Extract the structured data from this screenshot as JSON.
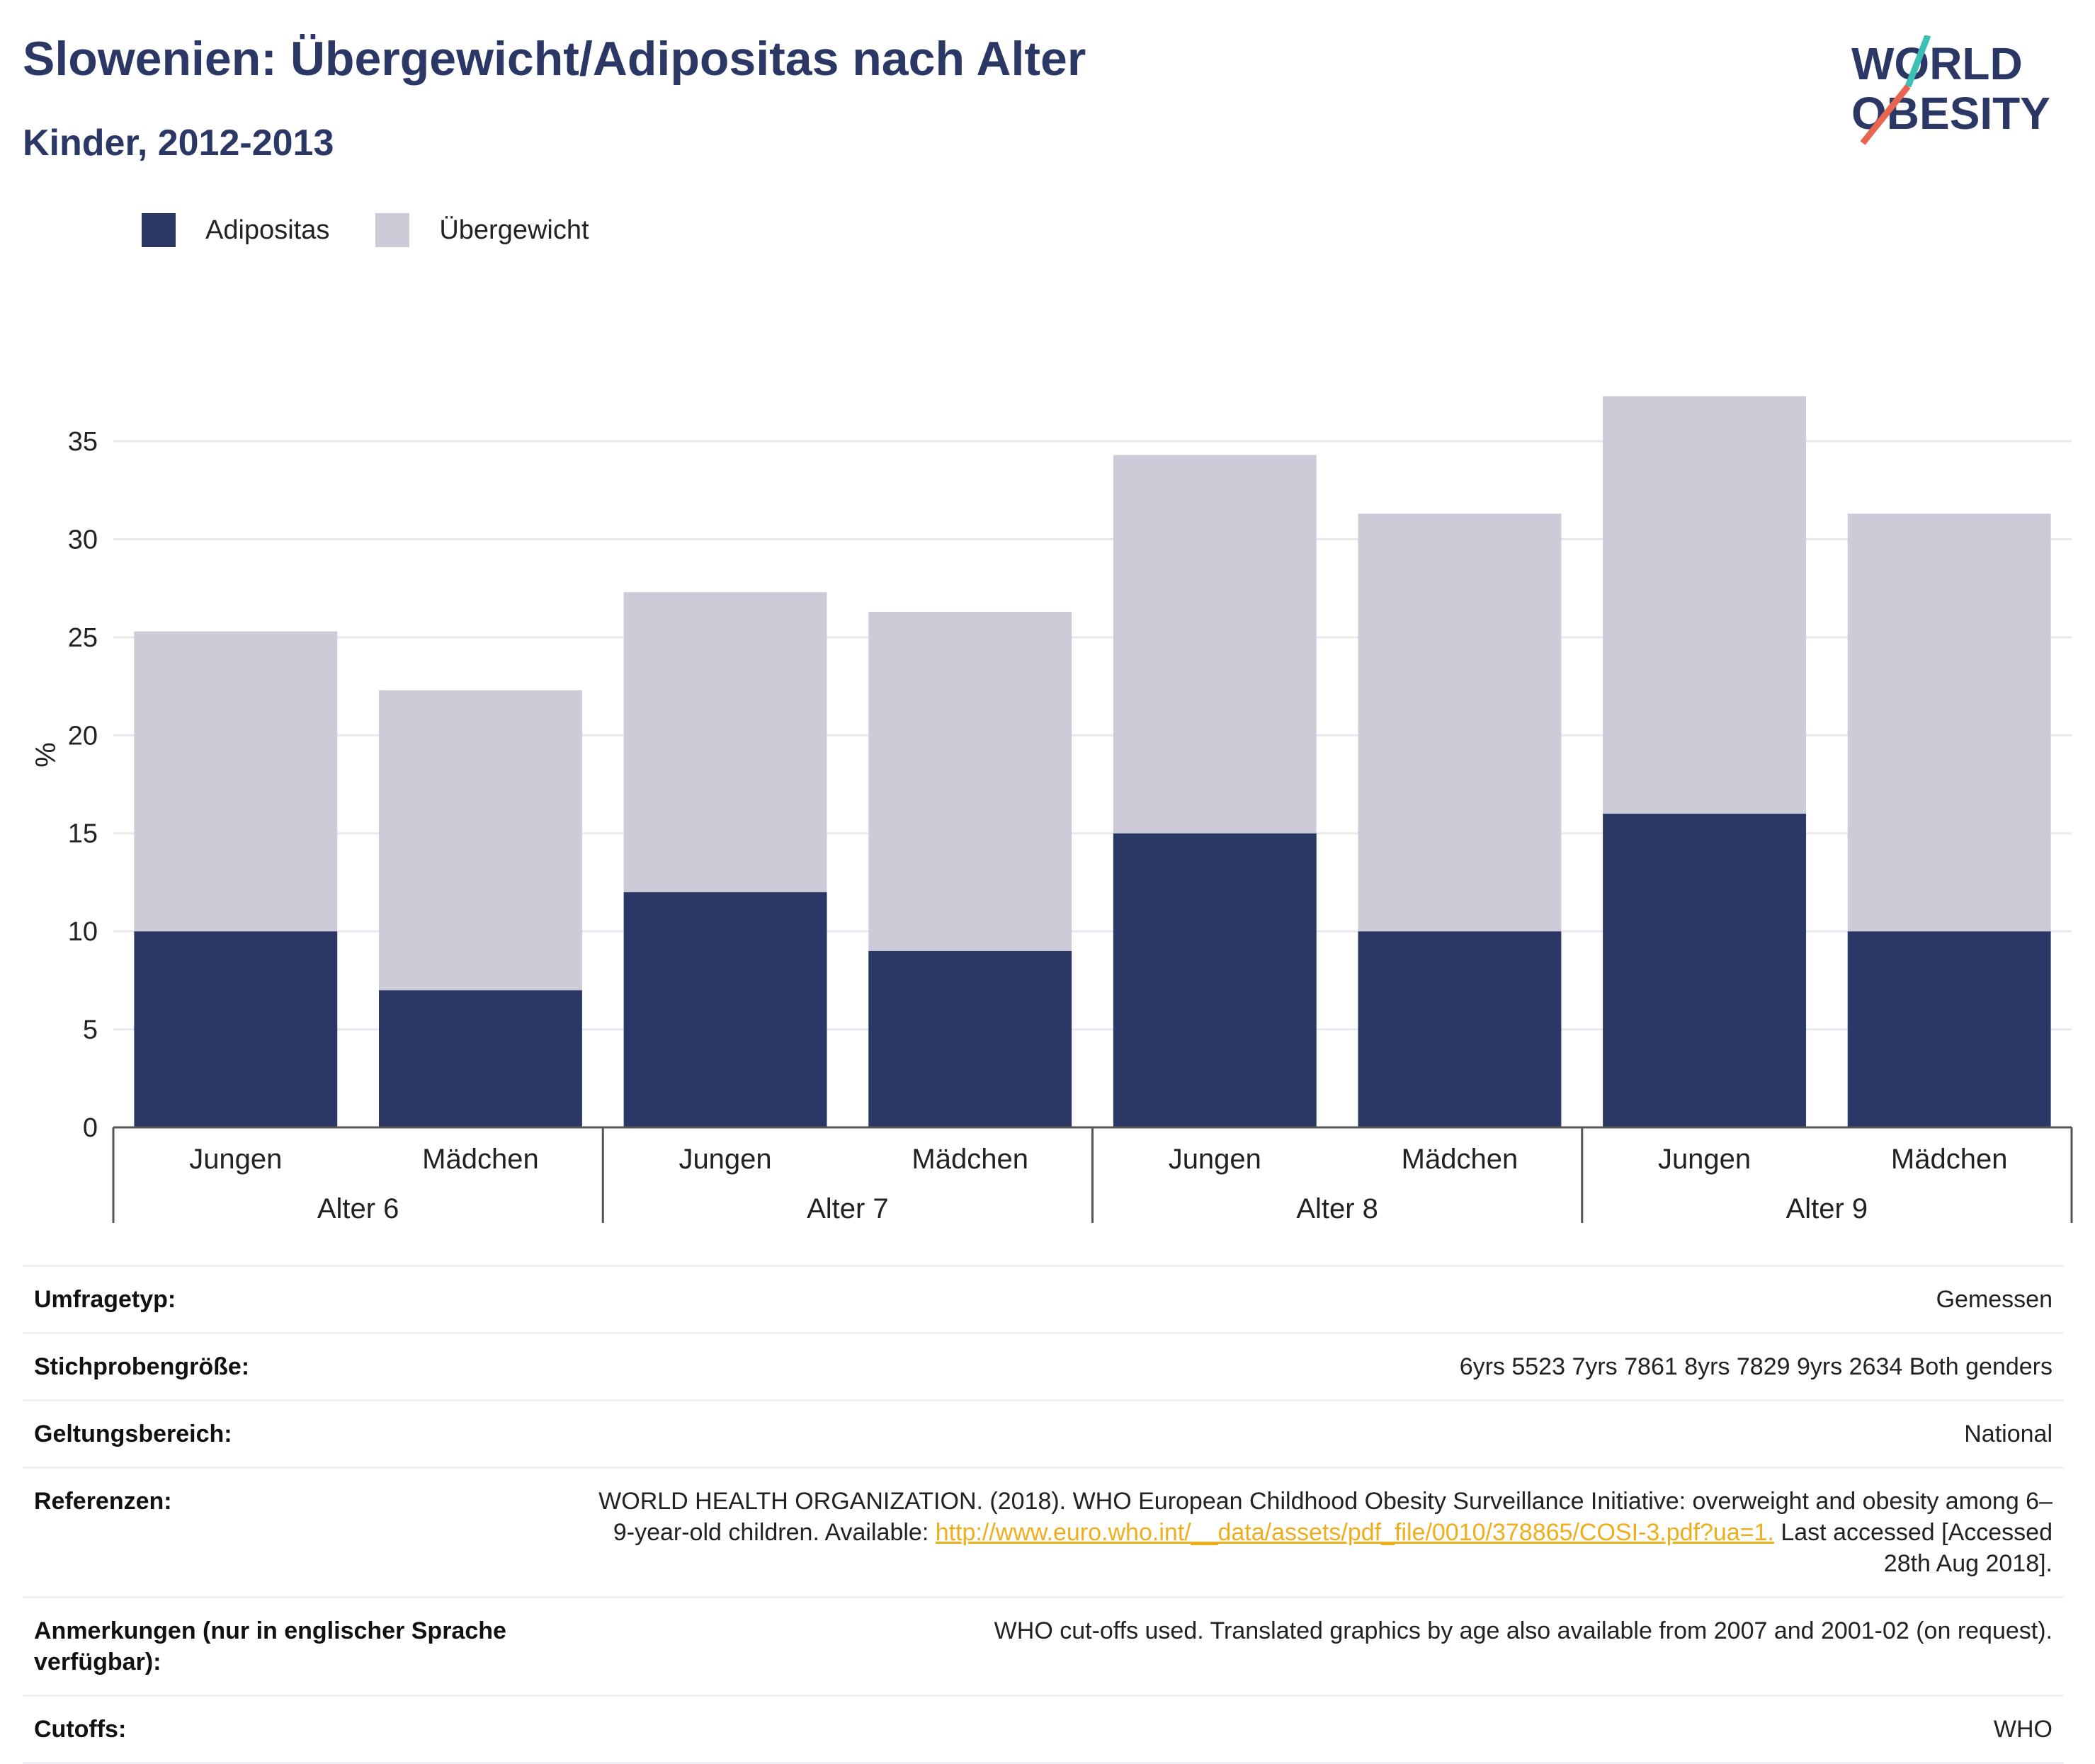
{
  "header": {
    "title": "Slowenien: Übergewicht/Adipositas nach Alter",
    "subtitle": "Kinder, 2012-2013"
  },
  "logo": {
    "line1": "WORLD",
    "line2": "OBESITY"
  },
  "colors": {
    "adipositas": "#2b3765",
    "uebergewicht": "#cbccd8",
    "title": "#2b3765",
    "link": "#f0ae1d"
  },
  "chart_data": {
    "type": "bar",
    "stacked": true,
    "ylabel": "%",
    "ylim": [
      0,
      38
    ],
    "yticks": [
      0,
      5,
      10,
      15,
      20,
      25,
      30,
      35
    ],
    "grid": true,
    "legend_position": "top-left",
    "groups": [
      "Alter 6",
      "Alter 7",
      "Alter 8",
      "Alter 9"
    ],
    "categories": [
      "Jungen",
      "Mädchen",
      "Jungen",
      "Mädchen",
      "Jungen",
      "Mädchen",
      "Jungen",
      "Mädchen"
    ],
    "series": [
      {
        "name": "Adipositas",
        "values": [
          10,
          7,
          12,
          9,
          15,
          10,
          16,
          10
        ]
      },
      {
        "name": "Übergewicht",
        "values": [
          15.3,
          15.3,
          15.3,
          17.3,
          19.3,
          21.3,
          21.3,
          21.3
        ]
      }
    ]
  },
  "info": {
    "survey_type": {
      "label": "Umfragetyp:",
      "value": "Gemessen"
    },
    "sample_size": {
      "label": "Stichprobengröße:",
      "value": "6yrs 5523 7yrs 7861 8yrs 7829 9yrs 2634 Both genders"
    },
    "scope": {
      "label": "Geltungsbereich:",
      "value": "National"
    },
    "references": {
      "label": "Referenzen:",
      "text1": "WORLD HEALTH ORGANIZATION. (2018). WHO European Childhood Obesity Surveillance Initiative: overweight and obesity among 6–9-year-old children. Available: ",
      "link": "http://www.euro.who.int/__data/assets/pdf_file/0010/378865/COSI-3.pdf?ua=1.",
      "text2": " Last accessed [Accessed 28th Aug 2018]."
    },
    "notes": {
      "label": "Anmerkungen (nur in englischer Sprache verfügbar):",
      "value": "WHO cut-offs used. Translated graphics by age also available from 2007 and 2001-02 (on request)."
    },
    "cutoffs": {
      "label": "Cutoffs:",
      "value": "WHO"
    }
  }
}
